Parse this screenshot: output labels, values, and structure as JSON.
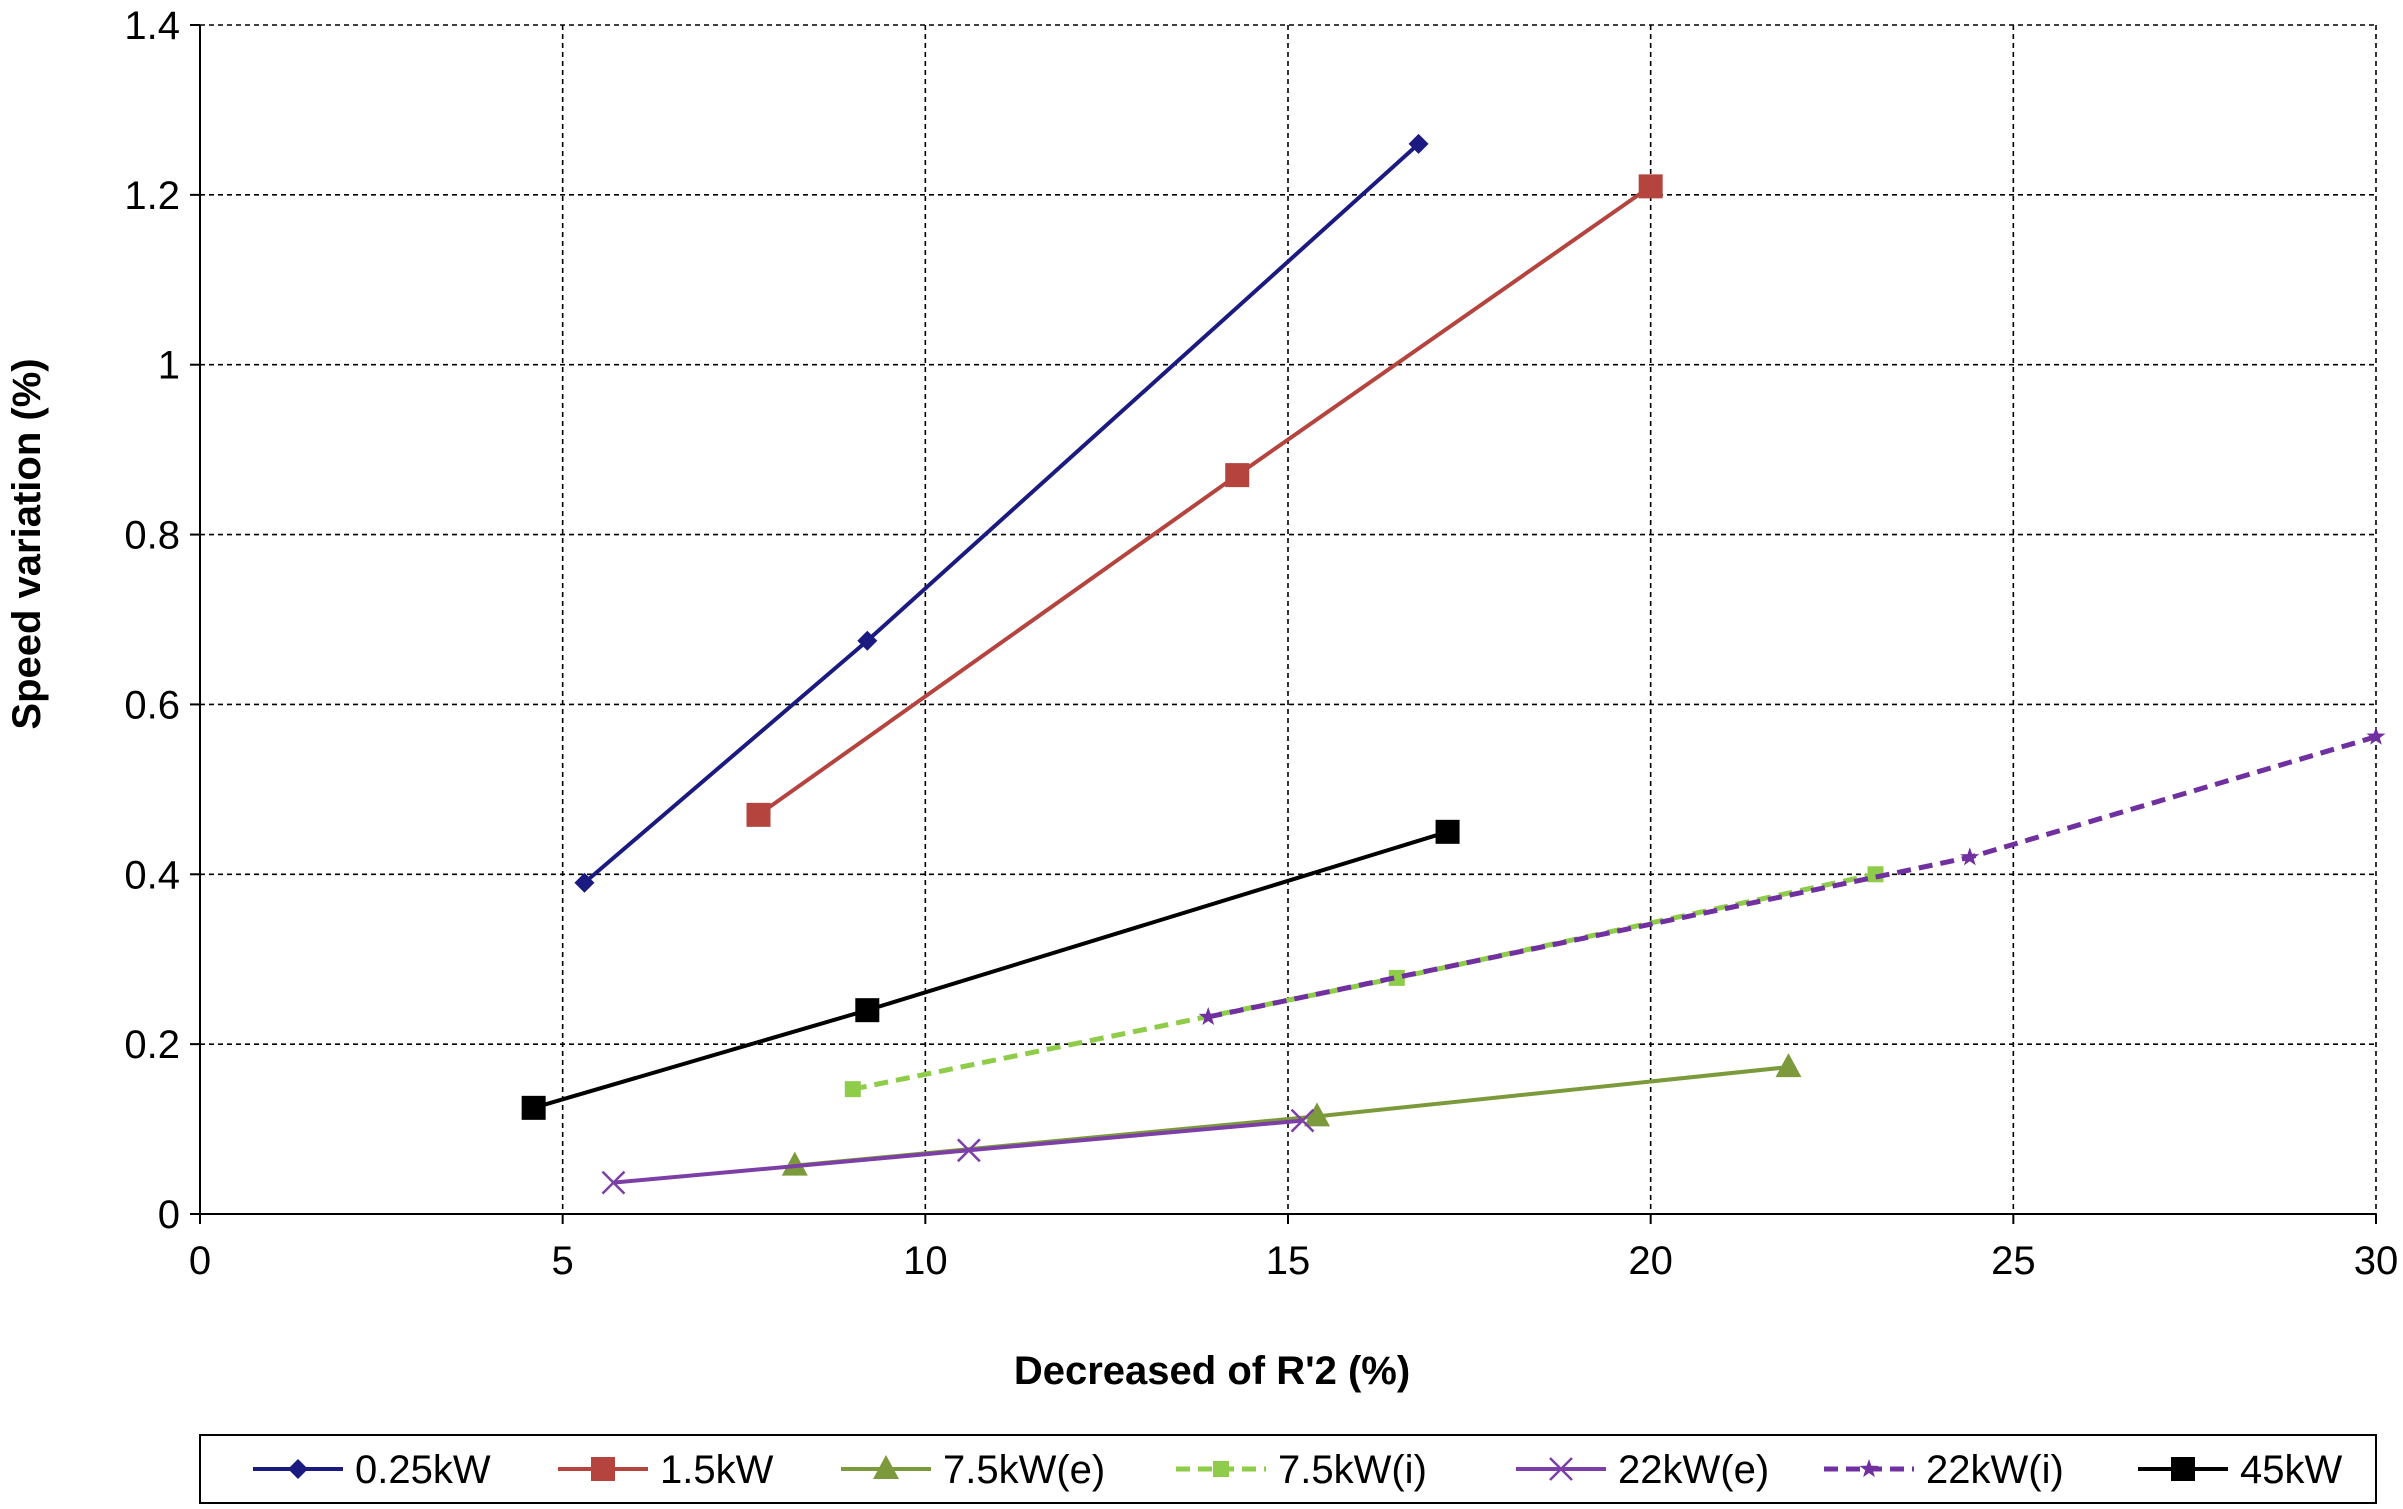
{
  "chart_data": {
    "type": "line",
    "title": "",
    "xlabel": "Decreased of R'2 (%)",
    "ylabel": "Speed variation (%)",
    "xlim": [
      0,
      30
    ],
    "ylim": [
      0,
      1.4
    ],
    "xticks": [
      0,
      5,
      10,
      15,
      20,
      25,
      30
    ],
    "yticks": [
      0,
      0.2,
      0.4,
      0.6,
      0.8,
      1,
      1.2,
      1.4
    ],
    "xtick_labels": [
      "0",
      "5",
      "10",
      "15",
      "20",
      "25",
      "30"
    ],
    "ytick_labels": [
      "0",
      "0.2",
      "0.4",
      "0.6",
      "0.8",
      "1",
      "1.2",
      "1.4"
    ],
    "grid": true,
    "legend_position": "bottom",
    "series": [
      {
        "name": "0.25kW",
        "color": "#1a1a80",
        "marker": "diamond",
        "dashed": false,
        "x": [
          5.3,
          9.2,
          16.8
        ],
        "y": [
          0.39,
          0.675,
          1.26
        ]
      },
      {
        "name": "1.5kW",
        "color": "#b5443f",
        "marker": "square",
        "dashed": false,
        "x": [
          7.7,
          14.3,
          20.0
        ],
        "y": [
          0.47,
          0.87,
          1.21
        ]
      },
      {
        "name": "7.5kW(e)",
        "color": "#7c9a3c",
        "marker": "triangle",
        "dashed": false,
        "x": [
          8.2,
          15.4,
          21.9
        ],
        "y": [
          0.057,
          0.115,
          0.173
        ]
      },
      {
        "name": "7.5kW(i)",
        "color": "#8ecc4a",
        "marker": "small-square",
        "dashed": true,
        "x": [
          9.0,
          16.5,
          23.1
        ],
        "y": [
          0.147,
          0.278,
          0.4
        ]
      },
      {
        "name": "22kW(e)",
        "color": "#7b3fa6",
        "marker": "x",
        "dashed": false,
        "x": [
          5.7,
          10.6,
          15.2
        ],
        "y": [
          0.037,
          0.075,
          0.11
        ]
      },
      {
        "name": "22kW(i)",
        "color": "#7030a0",
        "marker": "star",
        "dashed": true,
        "x": [
          13.9,
          24.4,
          30.0
        ],
        "y": [
          0.232,
          0.42,
          0.562
        ]
      },
      {
        "name": "45kW",
        "color": "#000000",
        "marker": "square",
        "dashed": false,
        "x": [
          4.6,
          9.2,
          17.2
        ],
        "y": [
          0.125,
          0.24,
          0.45
        ]
      }
    ]
  }
}
